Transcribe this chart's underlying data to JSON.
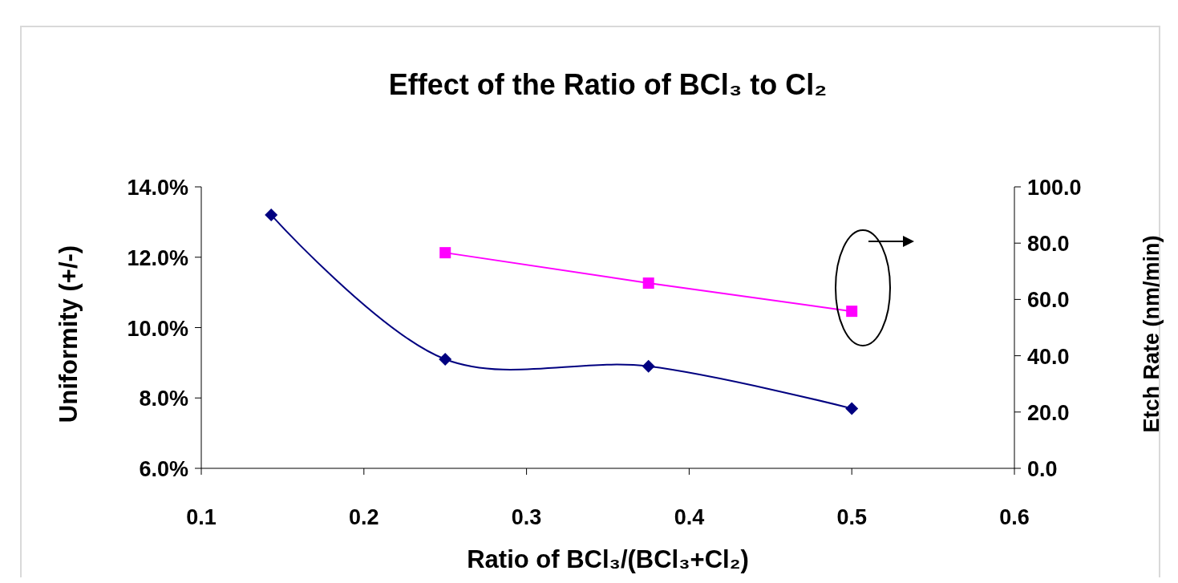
{
  "chart_data": {
    "type": "line",
    "title": "Effect of the Ratio of BCl₃ to Cl₂",
    "xlabel": "Ratio of BCl₃/(BCl₃+Cl₂)",
    "ylabel": "Uniformity (+/-)",
    "y2label": "Etch Rate (nm/min)",
    "xlim": [
      0.1,
      0.6
    ],
    "xticks": [
      0.1,
      0.2,
      0.3,
      0.4,
      0.5,
      0.6
    ],
    "ylim": [
      6,
      14
    ],
    "yticks": [
      {
        "value": 6,
        "label": "6.0%"
      },
      {
        "value": 8,
        "label": "8.0%"
      },
      {
        "value": 10,
        "label": "10.0%"
      },
      {
        "value": 12,
        "label": "12.0%"
      },
      {
        "value": 14,
        "label": "14.0%"
      }
    ],
    "y2lim": [
      0,
      100
    ],
    "y2ticks": [
      {
        "value": 0,
        "label": "0.0"
      },
      {
        "value": 20,
        "label": "20.0"
      },
      {
        "value": 40,
        "label": "40.0"
      },
      {
        "value": 60,
        "label": "60.0"
      },
      {
        "value": 80,
        "label": "80.0"
      },
      {
        "value": 100,
        "label": "100.0"
      }
    ],
    "grid": false,
    "series": [
      {
        "color": "#000080",
        "marker": "diamond",
        "x": [
          0.143,
          0.25,
          0.375,
          0.5
        ],
        "values": [
          13.2,
          9.1,
          8.9,
          7.7
        ]
      },
      {
        "color": "#ff00ff",
        "marker": "square",
        "axis": "y2",
        "x": [
          0.25,
          0.375,
          0.5
        ],
        "values": [
          76.6,
          65.8,
          55.8
        ]
      }
    ]
  }
}
